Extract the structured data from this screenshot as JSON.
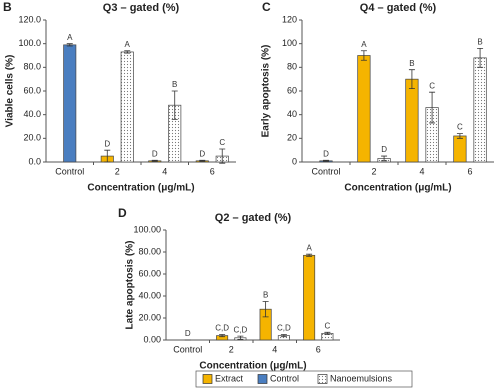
{
  "chart_data": [
    {
      "type": "bar",
      "panel": "B",
      "title": "Q3 – gated (%)",
      "x_label": "Concentration (μg/mL)",
      "y_label": "Viable cells (%)",
      "categories": [
        "Control",
        "2",
        "4",
        "6"
      ],
      "series": [
        {
          "color": "#f5b400",
          "values": [
            null,
            5,
            1,
            1
          ],
          "errors": [
            null,
            5,
            0.5,
            0.5
          ],
          "letters": [
            null,
            "D",
            "D",
            "D"
          ]
        },
        {
          "color": "#4a7ec0",
          "values": [
            99,
            null,
            null,
            null
          ],
          "errors": [
            1,
            null,
            null,
            null
          ],
          "letters": [
            "A",
            null,
            null,
            null
          ]
        },
        {
          "color": "#ffffff",
          "pattern": "dotted",
          "values": [
            null,
            93,
            48,
            5
          ],
          "errors": [
            null,
            1,
            12,
            6
          ],
          "letters": [
            null,
            "A",
            "B",
            "C"
          ]
        }
      ],
      "ylim": [
        0,
        120
      ],
      "yticks": [
        {
          "value": 0,
          "label": "0.0"
        },
        {
          "value": 20,
          "label": "20.0"
        },
        {
          "value": 40,
          "label": "40.0"
        },
        {
          "value": 60,
          "label": "60.0"
        },
        {
          "value": 80,
          "label": "80.0"
        },
        {
          "value": 100,
          "label": "100.0"
        },
        {
          "value": 120,
          "label": "120.0"
        }
      ]
    },
    {
      "type": "bar",
      "panel": "C",
      "title": "Q4 – gated (%)",
      "x_label": "Concentration (μg/mL)",
      "y_label": "Early apoptosis (%)",
      "categories": [
        "Control",
        "2",
        "4",
        "6"
      ],
      "series": [
        {
          "color": "#f5b400",
          "values": [
            null,
            90,
            70,
            22
          ],
          "errors": [
            null,
            4,
            8,
            2
          ],
          "letters": [
            null,
            "A",
            "B",
            "C"
          ]
        },
        {
          "color": "#4a7ec0",
          "values": [
            1,
            null,
            null,
            null
          ],
          "errors": [
            0.5,
            null,
            null,
            null
          ],
          "letters": [
            "D",
            null,
            null,
            null
          ]
        },
        {
          "color": "#ffffff",
          "pattern": "dotted",
          "values": [
            null,
            3,
            46,
            88
          ],
          "errors": [
            null,
            2,
            13,
            8
          ],
          "letters": [
            null,
            "D",
            "C",
            "B"
          ]
        }
      ],
      "ylim": [
        0,
        120
      ],
      "yticks": [
        0,
        20,
        40,
        60,
        80,
        100,
        120
      ]
    },
    {
      "type": "bar",
      "panel": "D",
      "title": "Q2 – gated (%)",
      "x_label": "Concentration (μg/mL)",
      "y_label": "Late apoptosis (%)",
      "categories": [
        "Control",
        "2",
        "4",
        "6"
      ],
      "series": [
        {
          "name": "Extract",
          "color": "#f5b400",
          "values": [
            null,
            4,
            28,
            77
          ],
          "errors": [
            null,
            1,
            7,
            1
          ],
          "letters": [
            null,
            "C,D",
            "B",
            "A"
          ]
        },
        {
          "name": "Control",
          "color": "#4a7ec0",
          "values": [
            0,
            null,
            null,
            null
          ],
          "errors": [
            0,
            null,
            null,
            null
          ],
          "letters": [
            "D",
            null,
            null,
            null
          ]
        },
        {
          "name": "Nanoemulsions",
          "color": "#ffffff",
          "pattern": "dotted",
          "values": [
            null,
            2,
            4,
            6
          ],
          "errors": [
            null,
            1.5,
            1,
            1
          ],
          "letters": [
            null,
            "C,D",
            "C,D",
            "C"
          ]
        }
      ],
      "ylim": [
        0,
        100
      ],
      "yticks": [
        {
          "value": 0,
          "label": "0.00"
        },
        {
          "value": 20,
          "label": "20.00"
        },
        {
          "value": 40,
          "label": "40.00"
        },
        {
          "value": 60,
          "label": "60.00"
        },
        {
          "value": 80,
          "label": "80.00"
        },
        {
          "value": 100,
          "label": "100.00"
        }
      ],
      "legend": "bottom"
    }
  ]
}
